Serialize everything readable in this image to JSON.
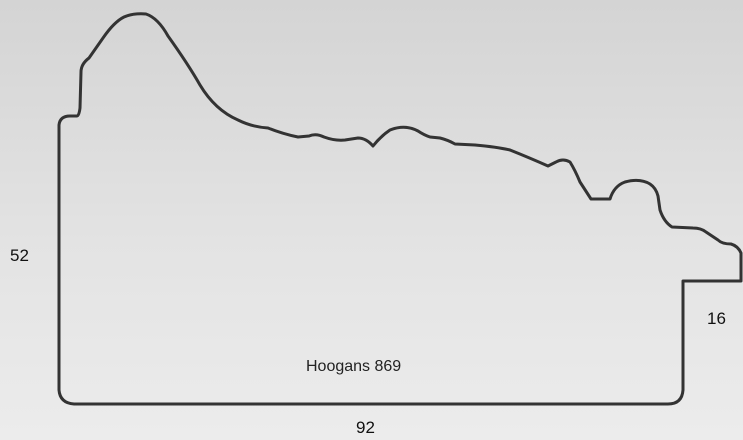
{
  "profile": {
    "name": "Hoogans 869",
    "outline_color": "#333333"
  },
  "dimensions": {
    "height": "52",
    "width": "92",
    "lip": "16"
  }
}
